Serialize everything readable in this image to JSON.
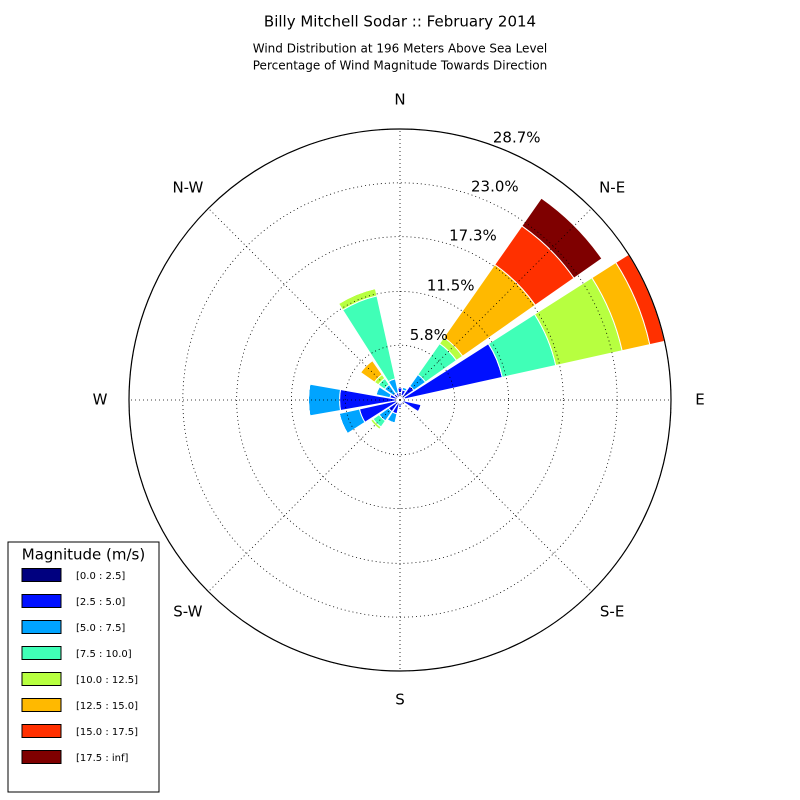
{
  "chart_data": {
    "type": "windrose",
    "title": "Billy Mitchell Sodar :: February 2014",
    "subtitle": [
      "Wind Distribution at 196 Meters Above Sea Level",
      "Percentage of Wind Magnitude Towards Direction"
    ],
    "directions": [
      0,
      22.5,
      45,
      67.5,
      90,
      112.5,
      135,
      157.5,
      180,
      202.5,
      225,
      247.5,
      270,
      292.5,
      315,
      337.5
    ],
    "angle_ticks": [
      {
        "value": 0,
        "label": "N"
      },
      {
        "value": 45,
        "label": "N-E"
      },
      {
        "value": 90,
        "label": "E"
      },
      {
        "value": 135,
        "label": "S-E"
      },
      {
        "value": 180,
        "label": "S"
      },
      {
        "value": 225,
        "label": "S-W"
      },
      {
        "value": 270,
        "label": "W"
      },
      {
        "value": 315,
        "label": "N-W"
      }
    ],
    "rlim": [
      0,
      28.7
    ],
    "rticks": [
      {
        "value": 5.8,
        "label": "5.8%"
      },
      {
        "value": 11.5,
        "label": "11.5%"
      },
      {
        "value": 17.3,
        "label": "17.3%"
      },
      {
        "value": 23.0,
        "label": "23.0%"
      },
      {
        "value": 28.7,
        "label": "28.7%"
      }
    ],
    "grid": true,
    "legend_title": "Magnitude (m/s)",
    "legend_position": "lower left",
    "series": [
      {
        "name": "[0.0 : 2.5]",
        "color": "#00007f",
        "values": [
          0.8,
          0.5,
          0.3,
          0.5,
          0.2,
          0.3,
          0.3,
          0.3,
          0.3,
          0.3,
          0.3,
          0.4,
          0.5,
          0.3,
          0.3,
          0.3
        ]
      },
      {
        "name": "[2.5 : 5.0]",
        "color": "#0010ff",
        "values": [
          0.5,
          0.6,
          1.5,
          10.6,
          0.4,
          2.0,
          0.3,
          0.3,
          0.5,
          1.2,
          1.2,
          4.0,
          5.9,
          0.8,
          0.5,
          0.5
        ]
      },
      {
        "name": "[5.0 : 7.5]",
        "color": "#00a4ff",
        "values": [
          0,
          0.3,
          1.5,
          0,
          0,
          0,
          0,
          0,
          0,
          1.0,
          1.2,
          2.2,
          3.3,
          1.5,
          1.2,
          1.5
        ]
      },
      {
        "name": "[7.5 : 10.0]",
        "color": "#40ffb7",
        "values": [
          0,
          0,
          4.0,
          5.8,
          0,
          0,
          0,
          0,
          0,
          0,
          0.8,
          0,
          0,
          0,
          0.8,
          9.0
        ]
      },
      {
        "name": "[10.0 : 12.5]",
        "color": "#b7ff40",
        "values": [
          0,
          0,
          0.8,
          7.2,
          0,
          0,
          0,
          0,
          0,
          0,
          0.3,
          0,
          0,
          0,
          0.5,
          0.8
        ]
      },
      {
        "name": "[12.5 : 15.0]",
        "color": "#ffb900",
        "values": [
          0,
          0,
          9.4,
          3.0,
          0,
          0,
          0,
          0,
          0,
          0,
          0,
          0,
          0,
          0,
          1.8,
          0
        ]
      },
      {
        "name": "[15.0 : 17.5]",
        "color": "#ff3000",
        "values": [
          0,
          0,
          5.0,
          1.6,
          0,
          0,
          0,
          0,
          0,
          0,
          0,
          0,
          0,
          0,
          0,
          0
        ]
      },
      {
        "name": "[17.5 : inf]",
        "color": "#7f0000",
        "values": [
          0,
          0,
          3.6,
          0,
          0,
          0,
          0,
          0,
          0,
          0,
          0,
          0,
          0,
          0,
          0,
          0
        ]
      }
    ]
  }
}
